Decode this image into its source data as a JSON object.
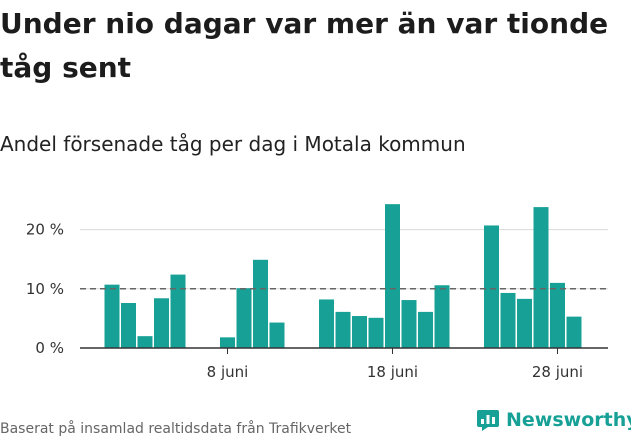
{
  "title": "Under nio dagar var mer än var tionde tåg sent",
  "subtitle": "Andel försenade tåg per dag i Motala kommun",
  "source": "Baserat på insamlad realtidsdata från Trafikverket",
  "brand": {
    "name": "Newsworthy",
    "logo_icon": "newsworthy-bar-chart-icon"
  },
  "colors": {
    "bar": "#17a096",
    "reference_line": "#666666",
    "grid": "#d9d9d9",
    "axis": "#333333"
  },
  "chart_data": {
    "type": "bar",
    "x_start": "1 juni",
    "x_end": "30 juni",
    "days": [
      1,
      2,
      3,
      4,
      5,
      6,
      7,
      8,
      9,
      10,
      11,
      12,
      13,
      14,
      15,
      16,
      17,
      18,
      19,
      20,
      21,
      22,
      23,
      24,
      25,
      26,
      27,
      28,
      29,
      30
    ],
    "values": [
      10.7,
      7.6,
      2.0,
      8.4,
      12.4,
      null,
      null,
      1.8,
      10.1,
      14.9,
      4.3,
      null,
      null,
      8.2,
      6.1,
      5.4,
      5.1,
      24.3,
      8.1,
      6.1,
      10.6,
      null,
      null,
      20.7,
      9.3,
      8.3,
      23.8,
      11.0,
      5.3,
      null
    ],
    "reference_line": 10,
    "ylim": [
      0,
      25
    ],
    "y_ticks": [
      {
        "value": 0,
        "label": "0 %"
      },
      {
        "value": 10,
        "label": "10 %"
      },
      {
        "value": 20,
        "label": "20 %"
      }
    ],
    "x_ticks": [
      {
        "day": 8,
        "label": "8 juni"
      },
      {
        "day": 18,
        "label": "18 juni"
      },
      {
        "day": 28,
        "label": "28 juni"
      }
    ],
    "xlabel": "",
    "ylabel": "",
    "grid": true,
    "legend": "none"
  }
}
